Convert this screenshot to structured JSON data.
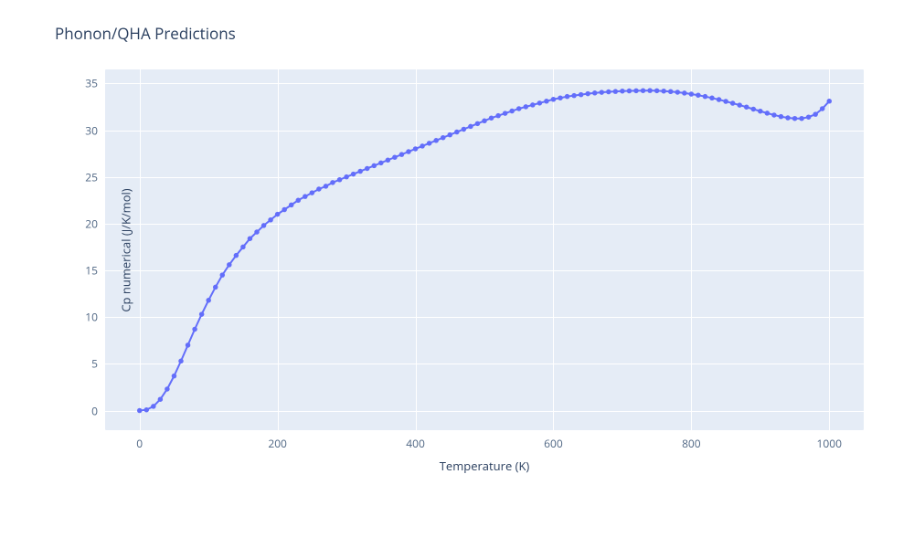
{
  "chart": {
    "type": "line+markers",
    "title": "Phonon/QHA Predictions",
    "title_fontsize": 17,
    "title_color": "#2a3f5f",
    "xlabel": "Temperature (K)",
    "ylabel": "Cp numerical (J/K/mol)",
    "label_fontsize": 13,
    "label_color": "#2a3f5f",
    "tick_fontsize": 12,
    "tick_color": "#506784",
    "background_color": "#ffffff",
    "plot_bgcolor": "#e5ecf6",
    "grid_color": "#ffffff",
    "grid_width": 1,
    "xlim": [
      -50,
      1050
    ],
    "ylim": [
      -2.1,
      36.5
    ],
    "x_ticks": [
      0,
      200,
      400,
      600,
      800,
      1000
    ],
    "y_ticks": [
      0,
      5,
      10,
      15,
      20,
      25,
      30,
      35
    ],
    "line_color": "#636efa",
    "line_width": 2,
    "marker_color": "#636efa",
    "marker_size": 5.5,
    "marker_style": "circle",
    "x": [
      0,
      10,
      20,
      30,
      40,
      50,
      60,
      70,
      80,
      90,
      100,
      110,
      120,
      130,
      140,
      150,
      160,
      170,
      180,
      190,
      200,
      210,
      220,
      230,
      240,
      250,
      260,
      270,
      280,
      290,
      300,
      310,
      320,
      330,
      340,
      350,
      360,
      370,
      380,
      390,
      400,
      410,
      420,
      430,
      440,
      450,
      460,
      470,
      480,
      490,
      500,
      510,
      520,
      530,
      540,
      550,
      560,
      570,
      580,
      590,
      600,
      610,
      620,
      630,
      640,
      650,
      660,
      670,
      680,
      690,
      700,
      710,
      720,
      730,
      740,
      750,
      760,
      770,
      780,
      790,
      800,
      810,
      820,
      830,
      840,
      850,
      860,
      870,
      880,
      890,
      900,
      910,
      920,
      930,
      940,
      950,
      960,
      970,
      980,
      990,
      1000
    ],
    "y": [
      0,
      0.08,
      0.45,
      1.2,
      2.3,
      3.7,
      5.3,
      7.0,
      8.7,
      10.3,
      11.8,
      13.2,
      14.5,
      15.6,
      16.6,
      17.5,
      18.4,
      19.1,
      19.8,
      20.4,
      21.0,
      21.5,
      22.0,
      22.5,
      22.9,
      23.3,
      23.7,
      24.0,
      24.4,
      24.7,
      25.0,
      25.3,
      25.6,
      25.9,
      26.2,
      26.5,
      26.8,
      27.1,
      27.4,
      27.7,
      28.0,
      28.3,
      28.6,
      28.9,
      29.2,
      29.5,
      29.8,
      30.1,
      30.4,
      30.7,
      31.0,
      31.3,
      31.55,
      31.8,
      32.05,
      32.3,
      32.5,
      32.7,
      32.9,
      33.1,
      33.3,
      33.45,
      33.6,
      33.7,
      33.8,
      33.9,
      33.98,
      34.05,
      34.1,
      34.14,
      34.18,
      34.2,
      34.22,
      34.23,
      34.24,
      34.22,
      34.18,
      34.13,
      34.06,
      33.97,
      33.86,
      33.74,
      33.6,
      33.44,
      33.27,
      33.08,
      32.88,
      32.68,
      32.47,
      32.25,
      32.03,
      31.82,
      31.62,
      31.45,
      31.32,
      31.25,
      31.25,
      31.4,
      31.7,
      32.3,
      33.1
    ]
  }
}
